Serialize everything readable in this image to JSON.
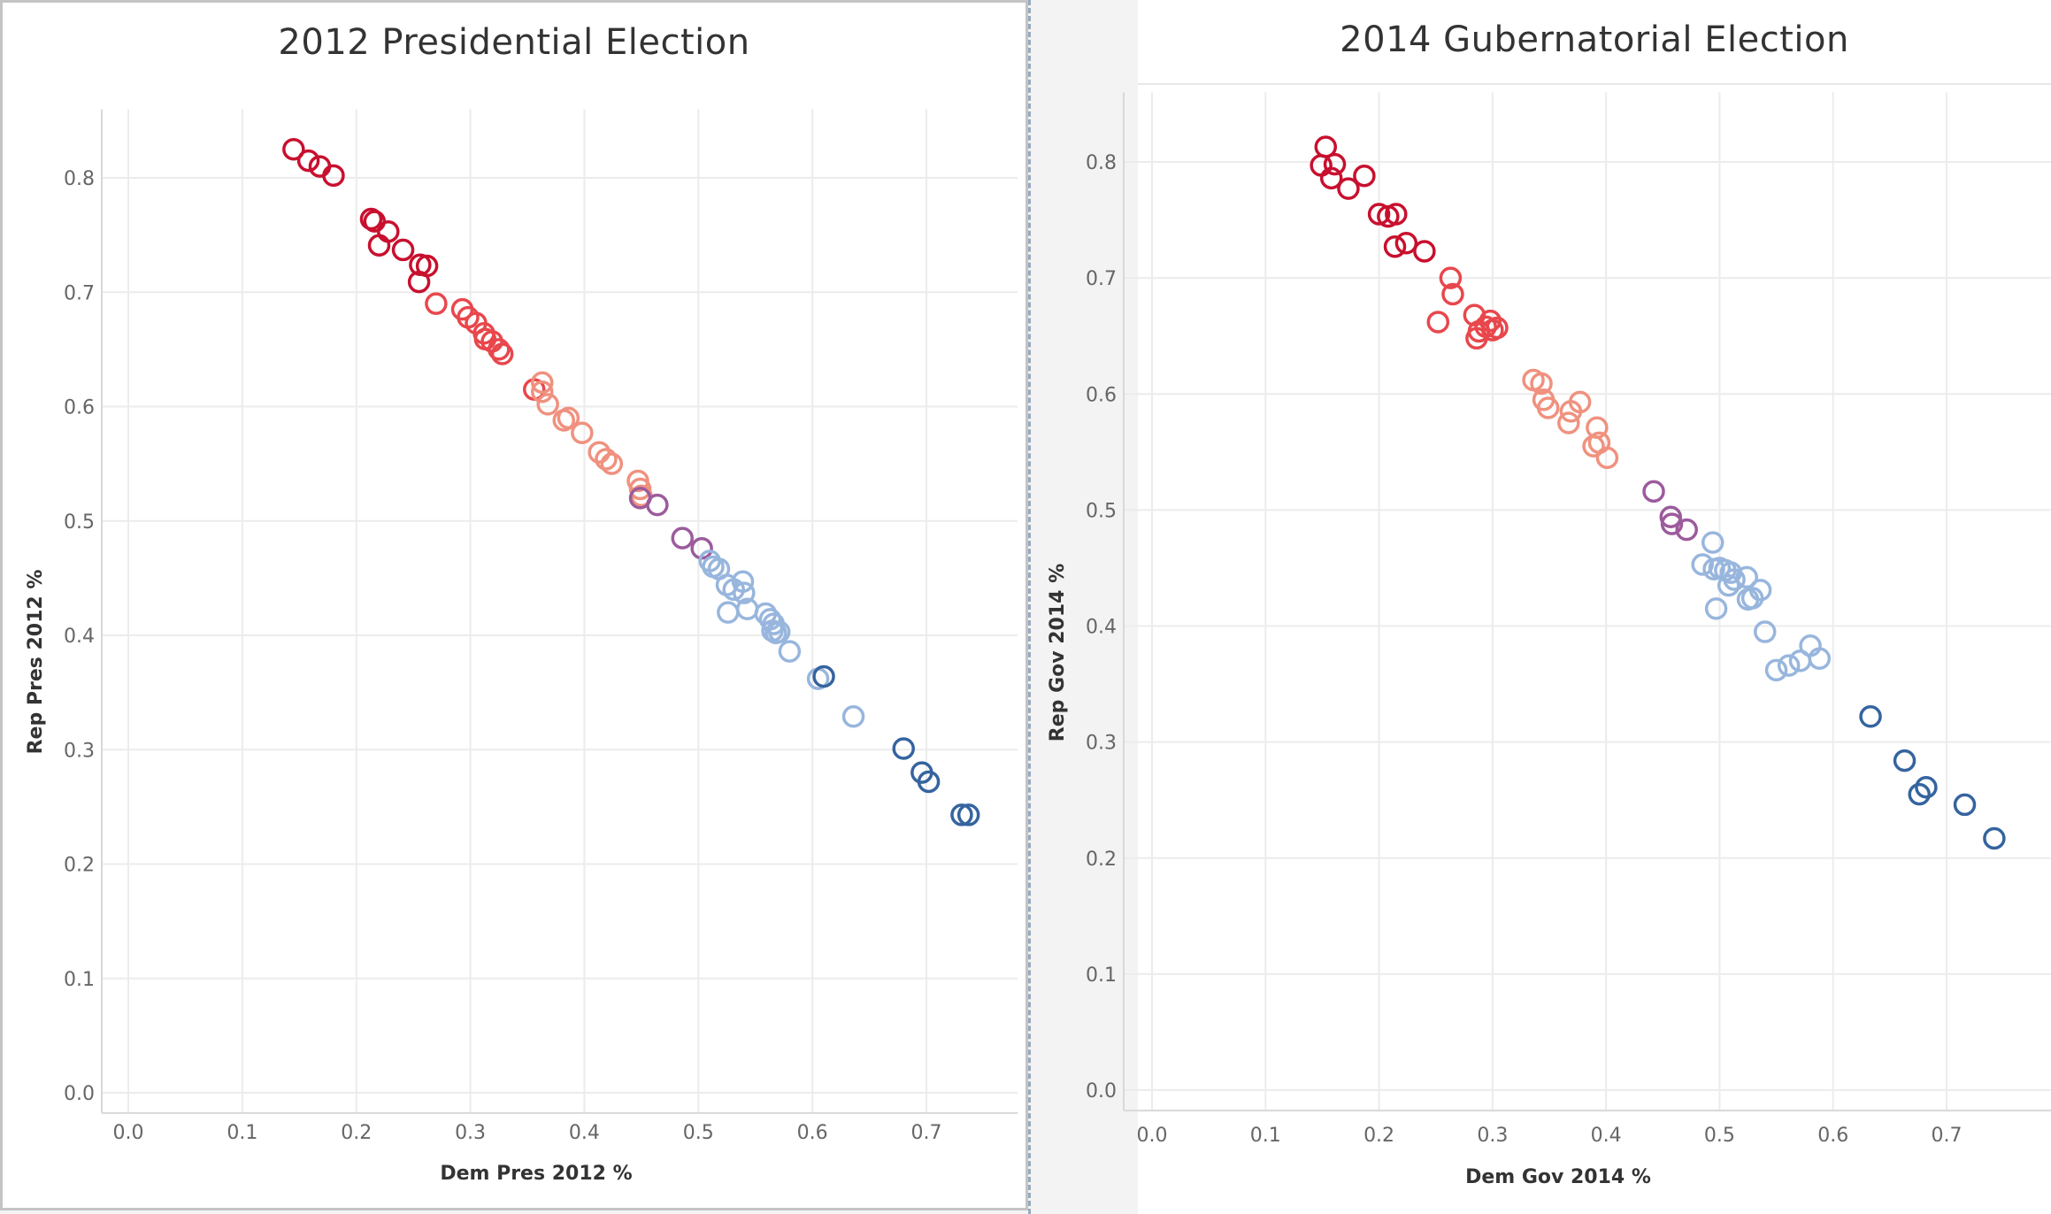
{
  "colors": {
    "dark_red": "#c8102e",
    "red": "#e8474c",
    "light_red": "#f0917f",
    "purple": "#9c5b9c",
    "light_blue": "#98b6dd",
    "dark_blue": "#35649f",
    "grid": "#ececec"
  },
  "chart_data": [
    {
      "type": "scatter",
      "title": "2012 Presidential Election",
      "xlabel": "Dem Pres 2012 %",
      "ylabel": "Rep Pres 2012 %",
      "xlim": [
        -0.01,
        0.78
      ],
      "ylim": [
        -0.01,
        0.86
      ],
      "x_ticks": [
        "0.0",
        "0.1",
        "0.2",
        "0.3",
        "0.4",
        "0.5",
        "0.6",
        "0.7"
      ],
      "y_ticks": [
        "0.0",
        "0.1",
        "0.2",
        "0.3",
        "0.4",
        "0.5",
        "0.6",
        "0.7",
        "0.8"
      ],
      "grid": true,
      "points": [
        {
          "x": 0.145,
          "y": 0.825,
          "c": "dark_red"
        },
        {
          "x": 0.158,
          "y": 0.815,
          "c": "dark_red"
        },
        {
          "x": 0.168,
          "y": 0.81,
          "c": "dark_red"
        },
        {
          "x": 0.18,
          "y": 0.802,
          "c": "dark_red"
        },
        {
          "x": 0.213,
          "y": 0.764,
          "c": "dark_red"
        },
        {
          "x": 0.216,
          "y": 0.762,
          "c": "dark_red"
        },
        {
          "x": 0.228,
          "y": 0.753,
          "c": "dark_red"
        },
        {
          "x": 0.22,
          "y": 0.741,
          "c": "dark_red"
        },
        {
          "x": 0.241,
          "y": 0.737,
          "c": "dark_red"
        },
        {
          "x": 0.256,
          "y": 0.724,
          "c": "dark_red"
        },
        {
          "x": 0.262,
          "y": 0.723,
          "c": "dark_red"
        },
        {
          "x": 0.255,
          "y": 0.709,
          "c": "dark_red"
        },
        {
          "x": 0.27,
          "y": 0.69,
          "c": "red"
        },
        {
          "x": 0.293,
          "y": 0.685,
          "c": "red"
        },
        {
          "x": 0.298,
          "y": 0.678,
          "c": "red"
        },
        {
          "x": 0.305,
          "y": 0.673,
          "c": "red"
        },
        {
          "x": 0.312,
          "y": 0.664,
          "c": "red"
        },
        {
          "x": 0.313,
          "y": 0.659,
          "c": "red"
        },
        {
          "x": 0.319,
          "y": 0.657,
          "c": "red"
        },
        {
          "x": 0.325,
          "y": 0.65,
          "c": "red"
        },
        {
          "x": 0.328,
          "y": 0.646,
          "c": "red"
        },
        {
          "x": 0.356,
          "y": 0.615,
          "c": "red"
        },
        {
          "x": 0.363,
          "y": 0.621,
          "c": "light_red"
        },
        {
          "x": 0.363,
          "y": 0.613,
          "c": "light_red"
        },
        {
          "x": 0.368,
          "y": 0.602,
          "c": "light_red"
        },
        {
          "x": 0.382,
          "y": 0.588,
          "c": "light_red"
        },
        {
          "x": 0.386,
          "y": 0.59,
          "c": "light_red"
        },
        {
          "x": 0.398,
          "y": 0.577,
          "c": "light_red"
        },
        {
          "x": 0.413,
          "y": 0.56,
          "c": "light_red"
        },
        {
          "x": 0.419,
          "y": 0.554,
          "c": "light_red"
        },
        {
          "x": 0.424,
          "y": 0.55,
          "c": "light_red"
        },
        {
          "x": 0.447,
          "y": 0.535,
          "c": "light_red"
        },
        {
          "x": 0.449,
          "y": 0.528,
          "c": "light_red"
        },
        {
          "x": 0.45,
          "y": 0.522,
          "c": "light_red"
        },
        {
          "x": 0.449,
          "y": 0.52,
          "c": "purple"
        },
        {
          "x": 0.464,
          "y": 0.514,
          "c": "purple"
        },
        {
          "x": 0.486,
          "y": 0.485,
          "c": "purple"
        },
        {
          "x": 0.503,
          "y": 0.476,
          "c": "purple"
        },
        {
          "x": 0.51,
          "y": 0.465,
          "c": "light_blue"
        },
        {
          "x": 0.513,
          "y": 0.46,
          "c": "light_blue"
        },
        {
          "x": 0.518,
          "y": 0.458,
          "c": "light_blue"
        },
        {
          "x": 0.525,
          "y": 0.444,
          "c": "light_blue"
        },
        {
          "x": 0.531,
          "y": 0.44,
          "c": "light_blue"
        },
        {
          "x": 0.539,
          "y": 0.447,
          "c": "light_blue"
        },
        {
          "x": 0.54,
          "y": 0.437,
          "c": "light_blue"
        },
        {
          "x": 0.526,
          "y": 0.42,
          "c": "light_blue"
        },
        {
          "x": 0.543,
          "y": 0.423,
          "c": "light_blue"
        },
        {
          "x": 0.559,
          "y": 0.419,
          "c": "light_blue"
        },
        {
          "x": 0.563,
          "y": 0.414,
          "c": "light_blue"
        },
        {
          "x": 0.566,
          "y": 0.41,
          "c": "light_blue"
        },
        {
          "x": 0.565,
          "y": 0.404,
          "c": "light_blue"
        },
        {
          "x": 0.568,
          "y": 0.402,
          "c": "light_blue"
        },
        {
          "x": 0.571,
          "y": 0.403,
          "c": "light_blue"
        },
        {
          "x": 0.58,
          "y": 0.386,
          "c": "light_blue"
        },
        {
          "x": 0.605,
          "y": 0.362,
          "c": "light_blue"
        },
        {
          "x": 0.636,
          "y": 0.329,
          "c": "light_blue"
        },
        {
          "x": 0.61,
          "y": 0.364,
          "c": "dark_blue"
        },
        {
          "x": 0.68,
          "y": 0.301,
          "c": "dark_blue"
        },
        {
          "x": 0.696,
          "y": 0.28,
          "c": "dark_blue"
        },
        {
          "x": 0.702,
          "y": 0.272,
          "c": "dark_blue"
        },
        {
          "x": 0.731,
          "y": 0.243,
          "c": "dark_blue"
        },
        {
          "x": 0.737,
          "y": 0.243,
          "c": "dark_blue"
        }
      ]
    },
    {
      "type": "scatter",
      "title": "2014 Gubernatorial Election",
      "xlabel": "Dem Gov 2014 %",
      "ylabel": "Rep Gov 2014 %",
      "xlim": [
        -0.01,
        0.8
      ],
      "ylim": [
        -0.01,
        0.86
      ],
      "x_ticks": [
        "0.0",
        "0.1",
        "0.2",
        "0.3",
        "0.4",
        "0.5",
        "0.6",
        "0.7"
      ],
      "y_ticks": [
        "0.0",
        "0.1",
        "0.2",
        "0.3",
        "0.4",
        "0.5",
        "0.6",
        "0.7",
        "0.8"
      ],
      "grid": true,
      "points": [
        {
          "x": 0.153,
          "y": 0.813,
          "c": "dark_red"
        },
        {
          "x": 0.149,
          "y": 0.797,
          "c": "dark_red"
        },
        {
          "x": 0.161,
          "y": 0.798,
          "c": "dark_red"
        },
        {
          "x": 0.158,
          "y": 0.786,
          "c": "dark_red"
        },
        {
          "x": 0.187,
          "y": 0.788,
          "c": "dark_red"
        },
        {
          "x": 0.173,
          "y": 0.777,
          "c": "dark_red"
        },
        {
          "x": 0.2,
          "y": 0.755,
          "c": "dark_red"
        },
        {
          "x": 0.208,
          "y": 0.753,
          "c": "dark_red"
        },
        {
          "x": 0.215,
          "y": 0.755,
          "c": "dark_red"
        },
        {
          "x": 0.214,
          "y": 0.727,
          "c": "dark_red"
        },
        {
          "x": 0.224,
          "y": 0.73,
          "c": "dark_red"
        },
        {
          "x": 0.24,
          "y": 0.723,
          "c": "dark_red"
        },
        {
          "x": 0.263,
          "y": 0.7,
          "c": "red"
        },
        {
          "x": 0.265,
          "y": 0.686,
          "c": "red"
        },
        {
          "x": 0.252,
          "y": 0.662,
          "c": "red"
        },
        {
          "x": 0.284,
          "y": 0.668,
          "c": "red"
        },
        {
          "x": 0.286,
          "y": 0.648,
          "c": "red"
        },
        {
          "x": 0.288,
          "y": 0.654,
          "c": "red"
        },
        {
          "x": 0.294,
          "y": 0.658,
          "c": "red"
        },
        {
          "x": 0.298,
          "y": 0.663,
          "c": "red"
        },
        {
          "x": 0.3,
          "y": 0.655,
          "c": "red"
        },
        {
          "x": 0.304,
          "y": 0.657,
          "c": "red"
        },
        {
          "x": 0.336,
          "y": 0.612,
          "c": "light_red"
        },
        {
          "x": 0.343,
          "y": 0.609,
          "c": "light_red"
        },
        {
          "x": 0.345,
          "y": 0.595,
          "c": "light_red"
        },
        {
          "x": 0.349,
          "y": 0.588,
          "c": "light_red"
        },
        {
          "x": 0.367,
          "y": 0.575,
          "c": "light_red"
        },
        {
          "x": 0.369,
          "y": 0.585,
          "c": "light_red"
        },
        {
          "x": 0.377,
          "y": 0.593,
          "c": "light_red"
        },
        {
          "x": 0.392,
          "y": 0.571,
          "c": "light_red"
        },
        {
          "x": 0.389,
          "y": 0.555,
          "c": "light_red"
        },
        {
          "x": 0.394,
          "y": 0.558,
          "c": "light_red"
        },
        {
          "x": 0.401,
          "y": 0.545,
          "c": "light_red"
        },
        {
          "x": 0.442,
          "y": 0.516,
          "c": "purple"
        },
        {
          "x": 0.457,
          "y": 0.494,
          "c": "purple"
        },
        {
          "x": 0.458,
          "y": 0.488,
          "c": "purple"
        },
        {
          "x": 0.471,
          "y": 0.483,
          "c": "purple"
        },
        {
          "x": 0.494,
          "y": 0.472,
          "c": "light_blue"
        },
        {
          "x": 0.485,
          "y": 0.453,
          "c": "light_blue"
        },
        {
          "x": 0.495,
          "y": 0.449,
          "c": "light_blue"
        },
        {
          "x": 0.5,
          "y": 0.45,
          "c": "light_blue"
        },
        {
          "x": 0.505,
          "y": 0.448,
          "c": "light_blue"
        },
        {
          "x": 0.51,
          "y": 0.446,
          "c": "light_blue"
        },
        {
          "x": 0.513,
          "y": 0.44,
          "c": "light_blue"
        },
        {
          "x": 0.508,
          "y": 0.435,
          "c": "light_blue"
        },
        {
          "x": 0.524,
          "y": 0.442,
          "c": "light_blue"
        },
        {
          "x": 0.536,
          "y": 0.431,
          "c": "light_blue"
        },
        {
          "x": 0.525,
          "y": 0.423,
          "c": "light_blue"
        },
        {
          "x": 0.529,
          "y": 0.424,
          "c": "light_blue"
        },
        {
          "x": 0.497,
          "y": 0.415,
          "c": "light_blue"
        },
        {
          "x": 0.54,
          "y": 0.395,
          "c": "light_blue"
        },
        {
          "x": 0.58,
          "y": 0.383,
          "c": "light_blue"
        },
        {
          "x": 0.571,
          "y": 0.37,
          "c": "light_blue"
        },
        {
          "x": 0.561,
          "y": 0.366,
          "c": "light_blue"
        },
        {
          "x": 0.55,
          "y": 0.362,
          "c": "light_blue"
        },
        {
          "x": 0.588,
          "y": 0.372,
          "c": "light_blue"
        },
        {
          "x": 0.633,
          "y": 0.322,
          "c": "dark_blue"
        },
        {
          "x": 0.663,
          "y": 0.284,
          "c": "dark_blue"
        },
        {
          "x": 0.682,
          "y": 0.261,
          "c": "dark_blue"
        },
        {
          "x": 0.676,
          "y": 0.255,
          "c": "dark_blue"
        },
        {
          "x": 0.716,
          "y": 0.246,
          "c": "dark_blue"
        },
        {
          "x": 0.742,
          "y": 0.217,
          "c": "dark_blue"
        }
      ]
    }
  ]
}
